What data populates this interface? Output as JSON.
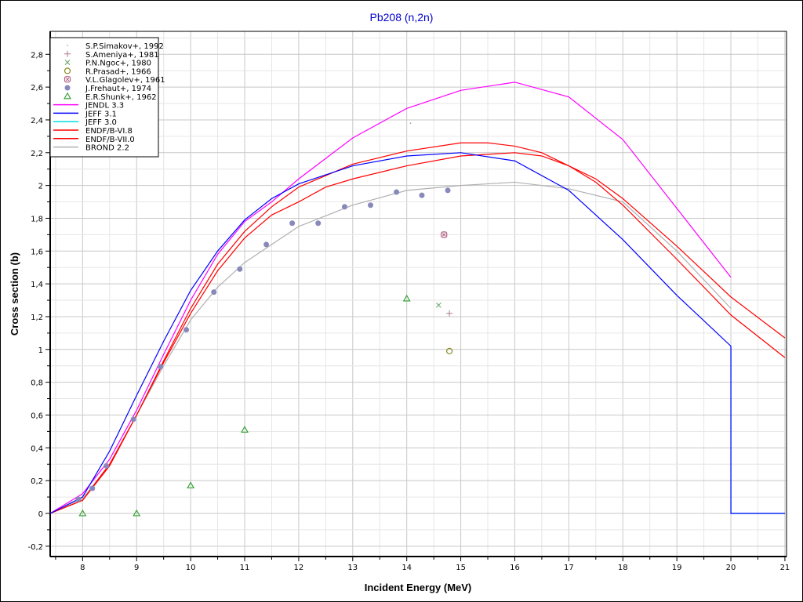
{
  "chart_data": {
    "type": "line",
    "title": "Pb208 (n,2n)",
    "xlabel": "Incident Energy (MeV)",
    "ylabel": "Cross section (b)",
    "xlim": [
      7.4,
      21.03
    ],
    "ylim": [
      -0.263,
      2.94
    ],
    "grid": true,
    "legend_position": "top-left",
    "xticks": [
      "8",
      "9",
      "10",
      "11",
      "12",
      "13",
      "14",
      "15",
      "16",
      "17",
      "18",
      "19",
      "20",
      "21"
    ],
    "yticks": [
      "-0,2",
      "0",
      "0,2",
      "0,4",
      "0,6",
      "0,8",
      "1",
      "1,2",
      "1,4",
      "1,6",
      "1,8",
      "2",
      "2,2",
      "2,4",
      "2,6",
      "2,8"
    ],
    "colors": {
      "title": "#0000cc"
    },
    "scatter": [
      {
        "name": "S.P.Simakov+, 1992",
        "marker": "dot",
        "color": "#7a9aa0",
        "points": [
          [
            14.07,
            2.38
          ]
        ]
      },
      {
        "name": "S.Ameniya+, 1981",
        "marker": "plus",
        "color": "#b07a8a",
        "points": [
          [
            14.79,
            1.22
          ]
        ]
      },
      {
        "name": "P.N.Ngoc+, 1980",
        "marker": "x",
        "color": "#60a060",
        "points": [
          [
            14.59,
            1.27
          ]
        ]
      },
      {
        "name": "R.Prasad+, 1966",
        "marker": "circle",
        "color": "#8a8a20",
        "points": [
          [
            14.79,
            0.99
          ]
        ]
      },
      {
        "name": "V.L.Glagolev+, 1961",
        "marker": "crossed-square",
        "color": "#b06080",
        "points": [
          [
            14.69,
            1.7
          ]
        ]
      },
      {
        "name": "J.Frehaut+, 1974",
        "marker": "filled",
        "color": "#8888bb",
        "points": [
          [
            7.92,
            0.086
          ],
          [
            8.18,
            0.153
          ],
          [
            8.44,
            0.29
          ],
          [
            8.94,
            0.574
          ],
          [
            9.44,
            0.895
          ],
          [
            9.92,
            1.12
          ],
          [
            10.43,
            1.35
          ],
          [
            10.91,
            1.49
          ],
          [
            11.4,
            1.64
          ],
          [
            11.88,
            1.77
          ],
          [
            12.36,
            1.77
          ],
          [
            12.85,
            1.87
          ],
          [
            13.33,
            1.88
          ],
          [
            13.81,
            1.96
          ],
          [
            14.28,
            1.94
          ],
          [
            14.76,
            1.97
          ]
        ]
      },
      {
        "name": "E.R.Shunk+, 1962",
        "marker": "triangle",
        "color": "#30a030",
        "points": [
          [
            8,
            0
          ],
          [
            9,
            0
          ],
          [
            10,
            0.17
          ],
          [
            11,
            0.51
          ],
          [
            14,
            1.31
          ]
        ]
      }
    ],
    "series": [
      {
        "name": "JENDL 3.3",
        "color": "#ff00ff",
        "points": [
          [
            7.4,
            0
          ],
          [
            8,
            0.12
          ],
          [
            8.5,
            0.33
          ],
          [
            9,
            0.63
          ],
          [
            9.5,
            0.97
          ],
          [
            10,
            1.3
          ],
          [
            10.5,
            1.58
          ],
          [
            11,
            1.78
          ],
          [
            11.5,
            1.9
          ],
          [
            12,
            2.04
          ],
          [
            13,
            2.29
          ],
          [
            14,
            2.47
          ],
          [
            15,
            2.58
          ],
          [
            16,
            2.63
          ],
          [
            17,
            2.54
          ],
          [
            18,
            2.28
          ],
          [
            19,
            1.86
          ],
          [
            20,
            1.44
          ]
        ]
      },
      {
        "name": "JEFF 3.1",
        "color": "#0000ff",
        "points": [
          [
            7.4,
            0
          ],
          [
            8,
            0.1
          ],
          [
            8.5,
            0.38
          ],
          [
            9,
            0.72
          ],
          [
            9.5,
            1.05
          ],
          [
            10,
            1.36
          ],
          [
            10.5,
            1.6
          ],
          [
            11,
            1.79
          ],
          [
            11.5,
            1.92
          ],
          [
            12,
            2.01
          ],
          [
            13,
            2.12
          ],
          [
            14,
            2.18
          ],
          [
            15,
            2.2
          ],
          [
            16,
            2.15
          ],
          [
            17,
            1.97
          ],
          [
            18,
            1.67
          ],
          [
            19,
            1.33
          ],
          [
            20,
            1.02
          ],
          [
            20,
            0
          ],
          [
            21,
            0
          ]
        ]
      },
      {
        "name": "JEFF 3.0",
        "color": "#00e0e0",
        "points": [
          [
            20,
            1.02
          ],
          [
            20,
            0
          ],
          [
            21,
            0
          ]
        ]
      },
      {
        "name": "ENDF/B-VI.8",
        "color": "#ff0000",
        "points": [
          [
            7.4,
            0
          ],
          [
            8,
            0.08
          ],
          [
            8.5,
            0.3
          ],
          [
            9,
            0.6
          ],
          [
            9.5,
            0.92
          ],
          [
            10,
            1.22
          ],
          [
            10.5,
            1.48
          ],
          [
            11,
            1.68
          ],
          [
            11.5,
            1.82
          ],
          [
            12,
            1.9
          ],
          [
            12.5,
            1.99
          ],
          [
            13,
            2.04
          ],
          [
            14,
            2.12
          ],
          [
            15,
            2.18
          ],
          [
            16,
            2.2
          ],
          [
            16.5,
            2.18
          ],
          [
            17,
            2.12
          ],
          [
            17.5,
            2.04
          ],
          [
            18,
            1.92
          ],
          [
            19,
            1.63
          ],
          [
            20,
            1.32
          ],
          [
            21,
            1.07
          ]
        ]
      },
      {
        "name": "ENDF/B-VII.0",
        "color": "#ff0000",
        "points": [
          [
            7.4,
            0
          ],
          [
            8,
            0.08
          ],
          [
            8.5,
            0.29
          ],
          [
            9,
            0.6
          ],
          [
            9.5,
            0.93
          ],
          [
            10,
            1.25
          ],
          [
            10.5,
            1.52
          ],
          [
            11,
            1.72
          ],
          [
            11.5,
            1.87
          ],
          [
            12,
            1.99
          ],
          [
            12.5,
            2.06
          ],
          [
            13,
            2.13
          ],
          [
            14,
            2.21
          ],
          [
            15,
            2.26
          ],
          [
            15.5,
            2.26
          ],
          [
            16,
            2.24
          ],
          [
            16.5,
            2.2
          ],
          [
            17,
            2.12
          ],
          [
            17.5,
            2.02
          ],
          [
            18,
            1.88
          ],
          [
            19,
            1.55
          ],
          [
            20,
            1.21
          ],
          [
            21,
            0.95
          ]
        ]
      },
      {
        "name": "BROND 2.2",
        "color": "#b0b0b0",
        "points": [
          [
            7.4,
            0
          ],
          [
            8,
            0.09
          ],
          [
            8.5,
            0.3
          ],
          [
            9,
            0.6
          ],
          [
            9.5,
            0.9
          ],
          [
            10,
            1.18
          ],
          [
            10.5,
            1.38
          ],
          [
            11,
            1.53
          ],
          [
            11.5,
            1.64
          ],
          [
            12,
            1.75
          ],
          [
            13,
            1.88
          ],
          [
            14,
            1.97
          ],
          [
            15,
            2.0
          ],
          [
            16,
            2.02
          ],
          [
            17,
            1.98
          ],
          [
            18,
            1.9
          ],
          [
            19,
            1.6
          ],
          [
            20,
            1.25
          ]
        ]
      }
    ]
  }
}
